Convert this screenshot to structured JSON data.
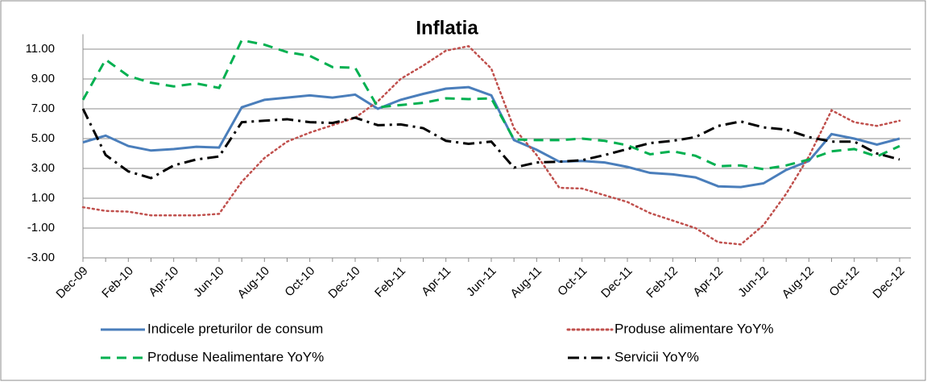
{
  "chart_data": {
    "type": "line",
    "title": "Inflatia",
    "categories": [
      "Dec-09",
      null,
      "Feb-10",
      null,
      "Apr-10",
      null,
      "Jun-10",
      null,
      "Aug-10",
      null,
      "Oct-10",
      null,
      "Dec-10",
      null,
      "Feb-11",
      null,
      "Apr-11",
      null,
      "Jun-11",
      null,
      "Aug-11",
      null,
      "Oct-11",
      null,
      "Dec-11",
      null,
      "Feb-12",
      null,
      "Apr-12",
      null,
      "Jun-12",
      null,
      "Aug-12",
      null,
      "Oct-12",
      null,
      "Dec-12"
    ],
    "series": [
      {
        "name": "Indicele preturilor de consum",
        "color": "#4a7ebb",
        "line_style": "solid",
        "values": [
          4.75,
          5.2,
          4.5,
          4.2,
          4.3,
          4.45,
          4.4,
          7.1,
          7.6,
          7.75,
          7.9,
          7.75,
          7.95,
          7.0,
          7.6,
          8.0,
          8.35,
          8.45,
          7.9,
          4.9,
          4.25,
          3.45,
          3.5,
          3.4,
          3.1,
          2.7,
          2.6,
          2.4,
          1.8,
          1.75,
          2.0,
          2.9,
          3.5,
          5.3,
          5.0,
          4.6,
          5.0
        ]
      },
      {
        "name": "Produse alimentare YoY%",
        "color": "#c0504d",
        "line_style": "dotted",
        "values": [
          0.4,
          0.15,
          0.1,
          -0.15,
          -0.15,
          -0.15,
          -0.05,
          2.1,
          3.7,
          4.8,
          5.4,
          5.9,
          6.4,
          7.5,
          9.0,
          9.9,
          10.9,
          11.2,
          9.7,
          5.7,
          3.9,
          1.7,
          1.65,
          1.2,
          0.75,
          0.0,
          -0.5,
          -1.0,
          -1.95,
          -2.1,
          -0.8,
          1.3,
          3.8,
          6.9,
          6.1,
          5.85,
          6.2
        ]
      },
      {
        "name": "Produse Nealimentare YoY%",
        "color": "#00b050",
        "line_style": "dashed",
        "values": [
          7.6,
          10.3,
          9.2,
          8.75,
          8.5,
          8.7,
          8.4,
          11.6,
          11.3,
          10.8,
          10.55,
          9.8,
          9.75,
          7.1,
          7.25,
          7.4,
          7.7,
          7.65,
          7.7,
          4.95,
          4.9,
          4.9,
          5.0,
          4.85,
          4.55,
          3.95,
          4.15,
          3.85,
          3.15,
          3.2,
          2.95,
          3.2,
          3.6,
          4.15,
          4.3,
          3.8,
          4.5
        ]
      },
      {
        "name": "Servicii YoY%",
        "color": "#000000",
        "line_style": "dashdot",
        "values": [
          7.0,
          3.9,
          2.8,
          2.35,
          3.2,
          3.6,
          3.8,
          6.1,
          6.2,
          6.3,
          6.1,
          6.05,
          6.4,
          5.9,
          5.95,
          5.7,
          4.85,
          4.65,
          4.8,
          3.05,
          3.4,
          3.45,
          3.55,
          3.9,
          4.3,
          4.7,
          4.85,
          5.1,
          5.85,
          6.15,
          5.75,
          5.6,
          5.1,
          4.8,
          4.8,
          4.0,
          3.6
        ]
      }
    ],
    "ylim": [
      -3,
      12
    ],
    "yticks": [
      {
        "value": -3,
        "label": "-3.00"
      },
      {
        "value": -1,
        "label": "-1.00"
      },
      {
        "value": 1,
        "label": "1.00"
      },
      {
        "value": 3,
        "label": "3.00"
      },
      {
        "value": 5,
        "label": "5.00"
      },
      {
        "value": 7,
        "label": "7.00"
      },
      {
        "value": 9,
        "label": "9.00"
      },
      {
        "value": 11,
        "label": "11.00"
      }
    ],
    "grid": true,
    "legend": "bottom"
  }
}
